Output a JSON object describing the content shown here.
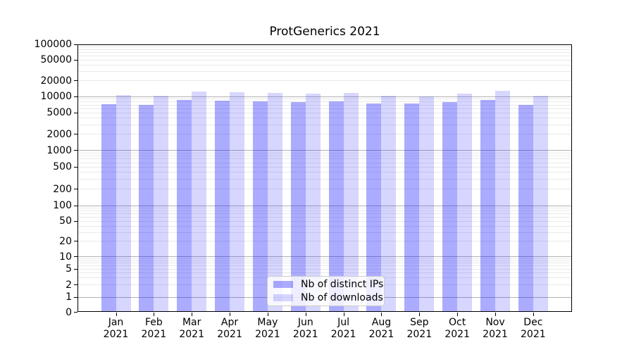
{
  "chart_data": {
    "type": "bar",
    "title": "ProtGenerics 2021",
    "x_axis": {
      "months": [
        "Jan",
        "Feb",
        "Mar",
        "Apr",
        "May",
        "Jun",
        "Jul",
        "Aug",
        "Sep",
        "Oct",
        "Nov",
        "Dec"
      ],
      "year": "2021"
    },
    "y_axis": {
      "scale": "symlog",
      "range": [
        0,
        100000
      ],
      "ticks": [
        0,
        1,
        2,
        5,
        10,
        20,
        50,
        100,
        200,
        500,
        1000,
        2000,
        5000,
        10000,
        20000,
        50000,
        100000
      ],
      "grid": "major and minor horizontal"
    },
    "series": [
      {
        "name": "Nb of distinct IPs",
        "color": "#aaaaff",
        "fill_rgba": "rgba(0,0,255,0.33)",
        "values": [
          7200,
          7000,
          8500,
          8300,
          8000,
          7900,
          8100,
          7300,
          7400,
          7900,
          8500,
          6900
        ]
      },
      {
        "name": "Nb of downloads",
        "color": "#d7d7ff",
        "fill_rgba": "rgba(0,0,255,0.16)",
        "values": [
          10600,
          10300,
          12500,
          12100,
          11600,
          11300,
          11700,
          10200,
          10000,
          11300,
          12800,
          10100
        ]
      }
    ],
    "legend": {
      "position": "lower center inside plot"
    },
    "colors": {
      "major_grid": "#b2b2b2",
      "minor_grid": "#e9e9e9",
      "axes": "#000000",
      "background": "#ffffff"
    }
  }
}
